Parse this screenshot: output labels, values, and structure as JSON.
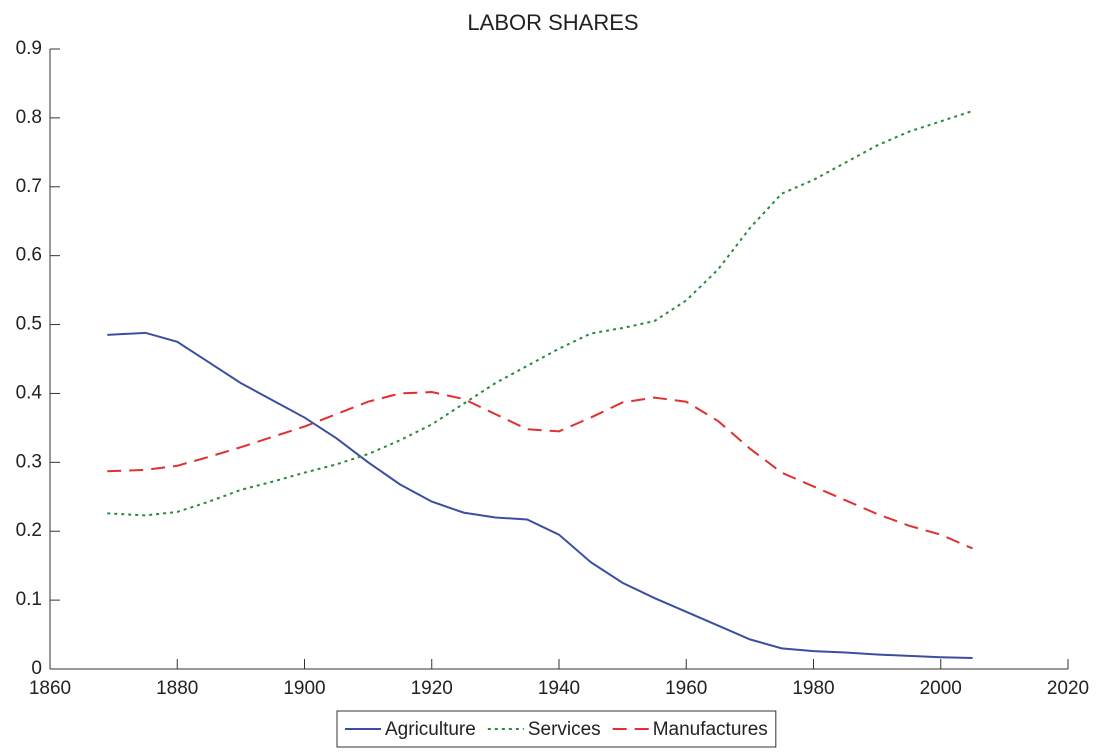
{
  "chart_data": {
    "type": "line",
    "title": "LABOR SHARES",
    "x": [
      1869,
      1875,
      1880,
      1885,
      1890,
      1895,
      1900,
      1905,
      1910,
      1915,
      1920,
      1925,
      1930,
      1935,
      1940,
      1945,
      1950,
      1955,
      1960,
      1965,
      1970,
      1975,
      1980,
      1985,
      1990,
      1995,
      2000,
      2005
    ],
    "series": [
      {
        "name": "Agriculture",
        "color": "#3a4fa0",
        "line_style": "solid",
        "values": [
          0.485,
          0.488,
          0.475,
          0.445,
          0.415,
          0.39,
          0.365,
          0.335,
          0.3,
          0.268,
          0.243,
          0.227,
          0.22,
          0.217,
          0.195,
          0.155,
          0.125,
          0.103,
          0.083,
          0.063,
          0.043,
          0.03,
          0.026,
          0.024,
          0.021,
          0.019,
          0.017,
          0.016
        ]
      },
      {
        "name": "Services",
        "color": "#2a8a3a",
        "line_style": "dotted",
        "values": [
          0.226,
          0.223,
          0.228,
          0.243,
          0.26,
          0.272,
          0.285,
          0.297,
          0.312,
          0.332,
          0.355,
          0.385,
          0.415,
          0.44,
          0.465,
          0.487,
          0.495,
          0.505,
          0.535,
          0.58,
          0.64,
          0.69,
          0.71,
          0.735,
          0.76,
          0.78,
          0.795,
          0.81
        ]
      },
      {
        "name": "Manufactures",
        "color": "#e03030",
        "line_style": "dashed",
        "values": [
          0.287,
          0.289,
          0.295,
          0.308,
          0.322,
          0.337,
          0.352,
          0.37,
          0.388,
          0.4,
          0.402,
          0.392,
          0.37,
          0.348,
          0.345,
          0.365,
          0.387,
          0.394,
          0.388,
          0.36,
          0.32,
          0.285,
          0.265,
          0.245,
          0.225,
          0.208,
          0.195,
          0.175
        ]
      }
    ],
    "xlim": [
      1860,
      2020
    ],
    "xticks": [
      1860,
      1880,
      1900,
      1920,
      1940,
      1960,
      1980,
      2000,
      2020
    ],
    "ylim": [
      0,
      0.9
    ],
    "yticks": [
      0,
      0.1,
      0.2,
      0.3,
      0.4,
      0.5,
      0.6,
      0.7,
      0.8,
      0.9
    ],
    "legend": "bottom"
  }
}
